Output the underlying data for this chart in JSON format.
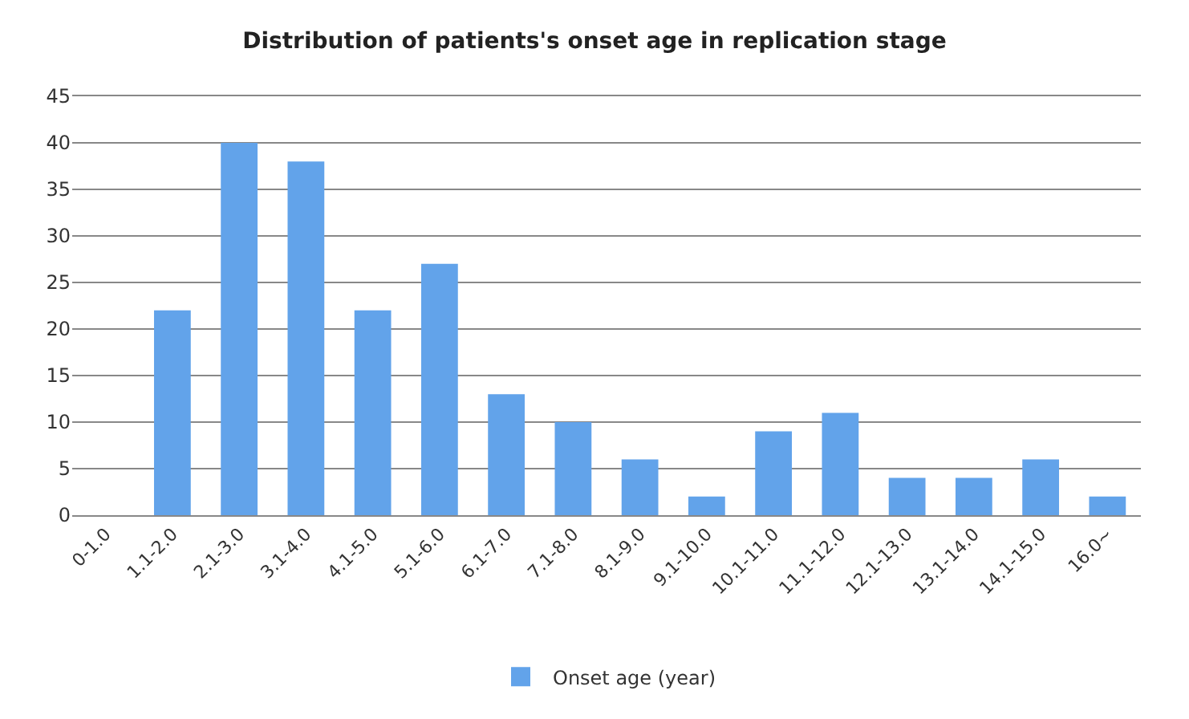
{
  "chart_data": {
    "type": "bar",
    "title": "Distribution of patients's onset age in replication stage",
    "categories": [
      "0-1.0",
      "1.1-2.0",
      "2.1-3.0",
      "3.1-4.0",
      "4.1-5.0",
      "5.1-6.0",
      "6.1-7.0",
      "7.1-8.0",
      "8.1-9.0",
      "9.1-10.0",
      "10.1-11.0",
      "11.1-12.0",
      "12.1-13.0",
      "13.1-14.0",
      "14.1-15.0",
      "16.0~"
    ],
    "series": [
      {
        "name": "Onset age (year)",
        "color": "#62a3ea",
        "values": [
          0,
          22,
          40,
          38,
          22,
          27,
          13,
          10,
          6,
          2,
          9,
          11,
          4,
          4,
          6,
          2
        ]
      }
    ],
    "ylim": [
      0,
      45
    ],
    "yticks": [
      0,
      5,
      10,
      15,
      20,
      25,
      30,
      35,
      40,
      45
    ],
    "grid": "y",
    "legend": "bottom"
  }
}
